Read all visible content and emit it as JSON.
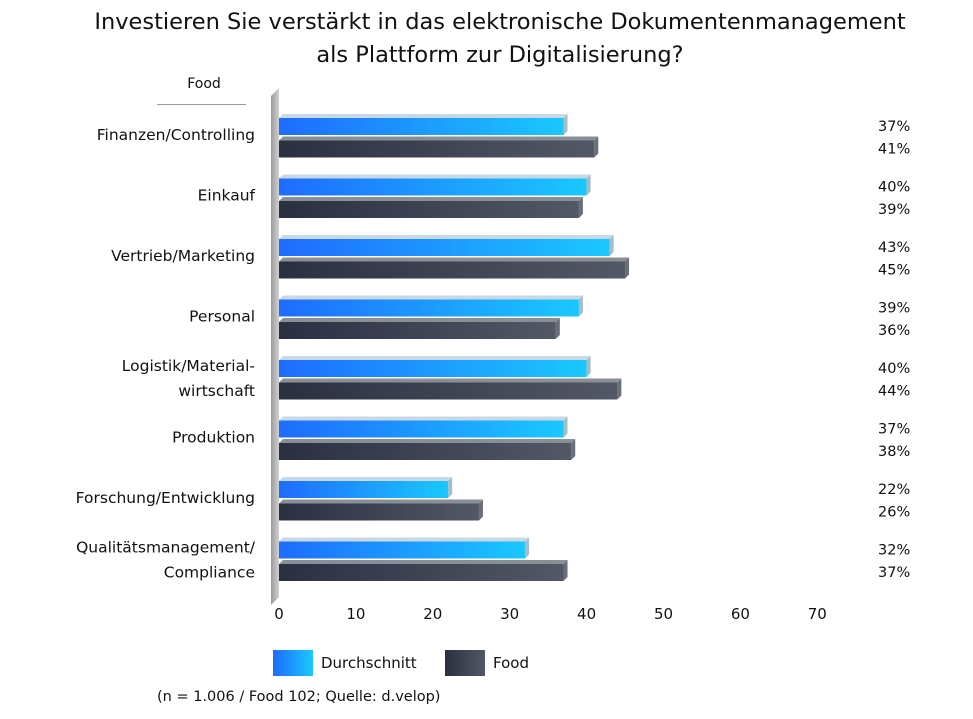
{
  "title_line1": "Investieren Sie verstärkt in das elektronische Dokumentenmanagement",
  "title_line2": "als Plattform zur Digitalisierung?",
  "subgroup_label": "Food",
  "footnote": "(n = 1.006 / Food 102; Quelle: d.velop)",
  "colors": {
    "durchschnitt_start": "#1e6cff",
    "durchschnitt_end": "#1ac8ff",
    "food_start": "#2a3040",
    "food_end": "#525866"
  },
  "chart_data": {
    "type": "bar",
    "orientation": "horizontal",
    "title": "Investieren Sie verstärkt in das elektronische Dokumentenmanagement als Plattform zur Digitalisierung?",
    "categories": [
      [
        "Finanzen/Controlling"
      ],
      [
        "Einkauf"
      ],
      [
        "Vertrieb/Marketing"
      ],
      [
        "Personal"
      ],
      [
        "Logistik/Material-",
        "wirtschaft"
      ],
      [
        "Produktion"
      ],
      [
        "Forschung/Entwicklung"
      ],
      [
        "Qualitätsmanagement/",
        "Compliance"
      ]
    ],
    "series": [
      {
        "name": "Durchschnitt",
        "values": [
          37,
          40,
          43,
          39,
          40,
          37,
          22,
          32
        ]
      },
      {
        "name": "Food",
        "values": [
          41,
          39,
          45,
          36,
          44,
          38,
          26,
          37
        ]
      }
    ],
    "value_labels": [
      [
        "37%",
        "41%"
      ],
      [
        "40%",
        "39%"
      ],
      [
        "43%",
        "45%"
      ],
      [
        "39%",
        "36%"
      ],
      [
        "40%",
        "44%"
      ],
      [
        "37%",
        "38%"
      ],
      [
        "22%",
        "26%"
      ],
      [
        "32%",
        "37%"
      ]
    ],
    "xlim": [
      0,
      70
    ],
    "xticks": [
      0,
      10,
      20,
      30,
      40,
      50,
      60,
      70
    ],
    "legend": [
      "Durchschnitt",
      "Food"
    ],
    "legend_position": "bottom"
  }
}
